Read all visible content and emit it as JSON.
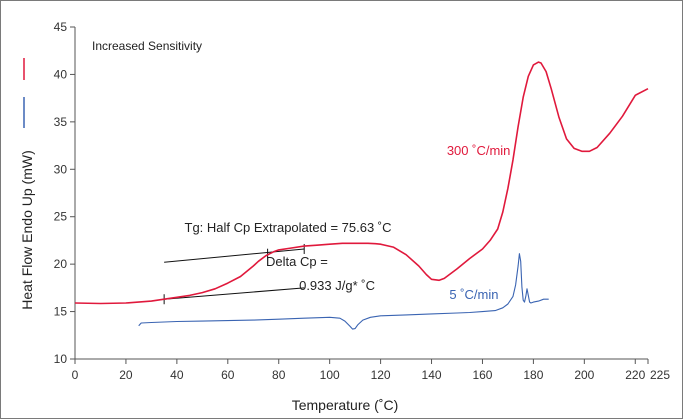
{
  "chart_data": {
    "type": "line",
    "title": "Increased Sensitivity",
    "xlabel": "Temperature (˚C)",
    "ylabel": "Heat Flow Endo Up (mW)",
    "xlim": [
      0,
      225
    ],
    "ylim": [
      10,
      45
    ],
    "xticks": [
      0,
      20,
      40,
      60,
      80,
      100,
      120,
      140,
      160,
      180,
      200,
      220,
      225
    ],
    "xtick_labels": [
      "0",
      "20",
      "40",
      "60",
      "80",
      "100",
      "120",
      "140",
      "160",
      "180",
      "200",
      "220",
      "225"
    ],
    "yticks": [
      10,
      15,
      20,
      25,
      30,
      35,
      40,
      45
    ],
    "ytick_labels": [
      "10",
      "15",
      "20",
      "25",
      "30",
      "35",
      "40",
      "45"
    ],
    "grid": false,
    "legend": "left-swatches",
    "series": [
      {
        "name": "300 ˚C/min",
        "color": "#e0193c",
        "label_at": [
          146,
          31.5
        ],
        "x": [
          0,
          10,
          20,
          30,
          35,
          40,
          45,
          50,
          55,
          60,
          65,
          70,
          72,
          75,
          78,
          80,
          85,
          90,
          95,
          100,
          105,
          110,
          115,
          118,
          120,
          125,
          130,
          135,
          138,
          140,
          143,
          145,
          150,
          155,
          160,
          163,
          166,
          168,
          170,
          172,
          174,
          176,
          178,
          180,
          182,
          183,
          185,
          187,
          190,
          193,
          196,
          199,
          202,
          205,
          210,
          215,
          220,
          225
        ],
        "y": [
          15.9,
          15.85,
          15.9,
          16.1,
          16.3,
          16.5,
          16.7,
          17.0,
          17.4,
          18.0,
          18.7,
          19.8,
          20.3,
          20.9,
          21.3,
          21.5,
          21.7,
          21.9,
          22.0,
          22.1,
          22.2,
          22.2,
          22.2,
          22.15,
          22.1,
          21.8,
          21.0,
          19.8,
          18.9,
          18.4,
          18.3,
          18.5,
          19.5,
          20.6,
          21.6,
          22.5,
          23.7,
          25.5,
          28.0,
          31.0,
          34.5,
          37.6,
          39.8,
          41.0,
          41.3,
          41.2,
          40.3,
          38.5,
          35.5,
          33.2,
          32.2,
          31.9,
          31.9,
          32.3,
          33.8,
          35.6,
          37.8,
          38.5
        ]
      },
      {
        "name": "5 ˚C/min",
        "color": "#3a64b2",
        "label_at": [
          147,
          16.3
        ],
        "x": [
          25,
          26,
          30,
          40,
          50,
          60,
          70,
          80,
          90,
          100,
          104,
          106,
          108,
          109,
          110,
          111,
          113,
          116,
          120,
          130,
          140,
          150,
          155,
          160,
          165,
          168,
          170,
          172,
          173,
          174,
          174.5,
          175,
          175.5,
          176,
          176.5,
          177,
          177.5,
          178,
          178.5,
          179,
          180,
          182,
          184,
          186
        ],
        "y": [
          13.5,
          13.8,
          13.85,
          13.95,
          14.0,
          14.05,
          14.1,
          14.2,
          14.3,
          14.4,
          14.3,
          14.0,
          13.45,
          13.15,
          13.2,
          13.6,
          14.1,
          14.4,
          14.55,
          14.65,
          14.75,
          14.85,
          14.9,
          15.0,
          15.1,
          15.4,
          15.8,
          16.6,
          17.8,
          19.8,
          21.1,
          20.3,
          17.6,
          16.2,
          16.0,
          16.6,
          17.4,
          16.7,
          16.0,
          15.9,
          16.0,
          16.1,
          16.3,
          16.3
        ]
      }
    ],
    "annotations": [
      {
        "text": "Tg: Half Cp Extrapolated = 75.63 ˚C",
        "at": [
          43,
          23.4
        ]
      },
      {
        "text": "Delta Cp =",
        "at": [
          75,
          19.8
        ]
      },
      {
        "text": "0.933 J/g* ˚C",
        "at": [
          88,
          17.3
        ]
      }
    ],
    "tangent_lines": [
      {
        "from": [
          35,
          20.2
        ],
        "to": [
          90,
          21.6
        ]
      },
      {
        "from": [
          35,
          16.3
        ],
        "to": [
          90,
          17.5
        ]
      }
    ],
    "tick_marks": [
      [
        35,
        16.3
      ],
      [
        90,
        21.6
      ],
      [
        75.63,
        21.1
      ]
    ]
  }
}
